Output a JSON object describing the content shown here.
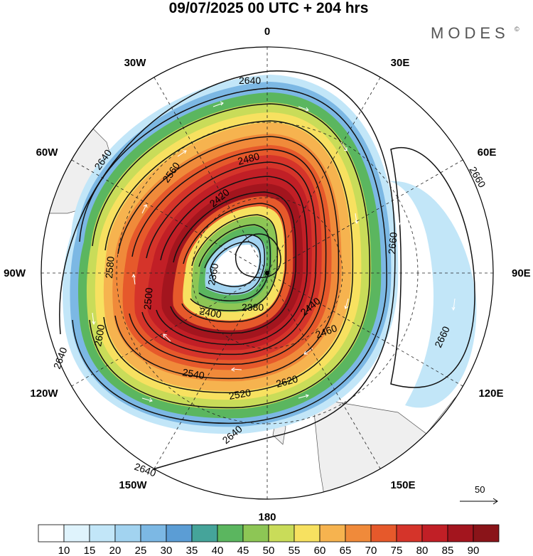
{
  "header": {
    "title": "09/07/2025  00 UTC  + 204 hrs",
    "brand": "MODES",
    "brand_mark": "©"
  },
  "map": {
    "projection": "south-polar-stereographic",
    "longitude_labels": [
      {
        "lon": 0,
        "text": "0"
      },
      {
        "lon": 30,
        "text": "30E"
      },
      {
        "lon": 60,
        "text": "60E"
      },
      {
        "lon": 90,
        "text": "90E"
      },
      {
        "lon": 120,
        "text": "120E"
      },
      {
        "lon": 150,
        "text": "150E"
      },
      {
        "lon": 180,
        "text": "180"
      },
      {
        "lon": -150,
        "text": "150W"
      },
      {
        "lon": -120,
        "text": "120W"
      },
      {
        "lon": -90,
        "text": "90W"
      },
      {
        "lon": -60,
        "text": "60W"
      },
      {
        "lon": -30,
        "text": "30W"
      }
    ],
    "contour_labels": [
      "2640",
      "2640",
      "2640",
      "2640",
      "2660",
      "2660",
      "2660",
      "2640",
      "2620",
      "2600",
      "2580",
      "2560",
      "2540",
      "2520",
      "2500",
      "2480",
      "2460",
      "2440",
      "2420",
      "2400",
      "2380",
      "2360"
    ],
    "vector_reference": "50"
  },
  "colorbar": {
    "colors": [
      "#ffffff",
      "#dff3fc",
      "#c2e6f8",
      "#a2d3f0",
      "#7cb8e4",
      "#5b9dd5",
      "#45a49a",
      "#5bb65f",
      "#8dc655",
      "#c9dc59",
      "#f7e160",
      "#f6b34f",
      "#f08a3a",
      "#e6592b",
      "#d5342a",
      "#c11f26",
      "#a3151e",
      "#8a1419"
    ],
    "labels": [
      "10",
      "15",
      "20",
      "25",
      "30",
      "35",
      "40",
      "45",
      "50",
      "55",
      "60",
      "65",
      "70",
      "75",
      "80",
      "85",
      "90"
    ]
  }
}
